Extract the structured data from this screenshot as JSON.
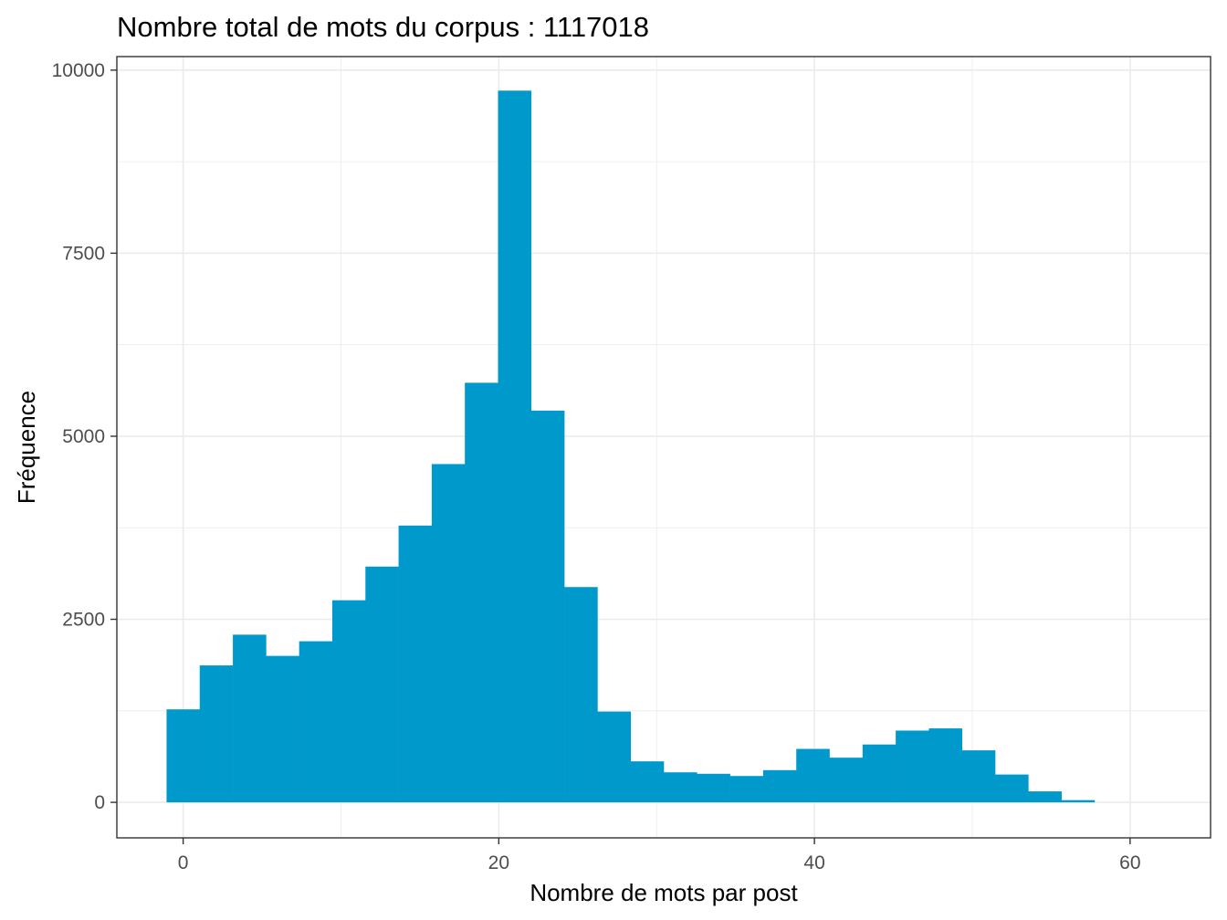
{
  "chart_data": {
    "type": "bar",
    "title": "Nombre total de mots du corpus : 1117018",
    "xlabel": "Nombre de mots par post",
    "ylabel": "Fréquence",
    "bin_width": 2.1,
    "bins": [
      {
        "x": 0.0,
        "count": 1270
      },
      {
        "x": 2.1,
        "count": 1870
      },
      {
        "x": 4.2,
        "count": 2290
      },
      {
        "x": 6.3,
        "count": 2000
      },
      {
        "x": 8.4,
        "count": 2200
      },
      {
        "x": 10.5,
        "count": 2760
      },
      {
        "x": 12.6,
        "count": 3220
      },
      {
        "x": 14.7,
        "count": 3780
      },
      {
        "x": 16.8,
        "count": 4620
      },
      {
        "x": 18.9,
        "count": 5730
      },
      {
        "x": 21.0,
        "count": 9720
      },
      {
        "x": 23.1,
        "count": 5350
      },
      {
        "x": 25.2,
        "count": 2940
      },
      {
        "x": 27.3,
        "count": 1240
      },
      {
        "x": 29.4,
        "count": 560
      },
      {
        "x": 31.5,
        "count": 410
      },
      {
        "x": 33.6,
        "count": 390
      },
      {
        "x": 35.7,
        "count": 360
      },
      {
        "x": 37.8,
        "count": 440
      },
      {
        "x": 39.9,
        "count": 730
      },
      {
        "x": 42.0,
        "count": 610
      },
      {
        "x": 44.1,
        "count": 790
      },
      {
        "x": 46.2,
        "count": 980
      },
      {
        "x": 48.3,
        "count": 1010
      },
      {
        "x": 50.4,
        "count": 710
      },
      {
        "x": 52.5,
        "count": 380
      },
      {
        "x": 54.6,
        "count": 150
      },
      {
        "x": 56.7,
        "count": 30
      }
    ],
    "xlim": [
      -4.2,
      65.1
    ],
    "ylim": [
      -485,
      10185
    ],
    "x_ticks": [
      0,
      20,
      40,
      60
    ],
    "y_ticks": [
      0,
      2500,
      5000,
      7500,
      10000
    ],
    "bar_color": "#0099CC",
    "grid": true,
    "legend": "none"
  }
}
